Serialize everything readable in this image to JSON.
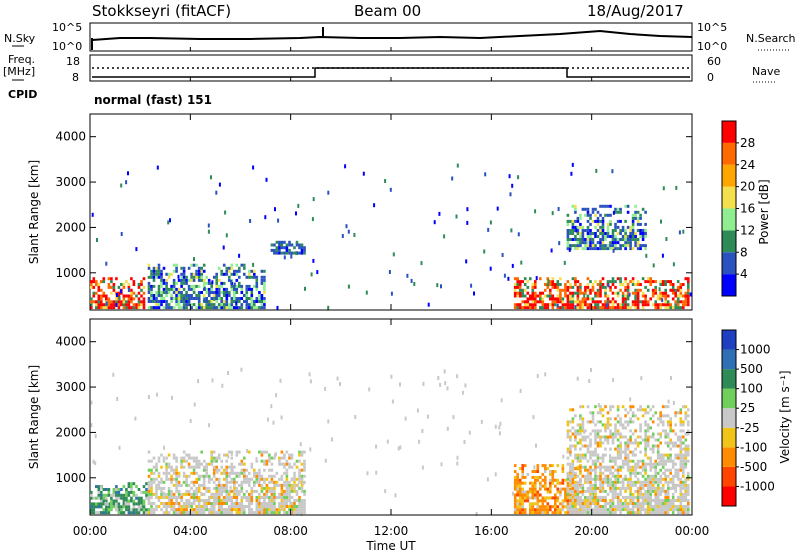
{
  "header": {
    "station": "Stokkseyri (fitACF)",
    "beam": "Beam 00",
    "date": "18/Aug/2017"
  },
  "status_panel": {
    "left_labels": {
      "nsky": "N.Sky",
      "freq": "Freq.",
      "freq_unit": "[MHz]",
      "cpid": "CPID"
    },
    "right_labels": {
      "nsearch": "N.Search",
      "nave": "Nave"
    },
    "nsky_ticks": [
      "10^5",
      "10^0"
    ],
    "nsearch_ticks": [
      "10^5",
      "10^0"
    ],
    "freq_ticks": [
      "18",
      "8"
    ],
    "nave_ticks": [
      "60",
      "0"
    ],
    "cpid_text": "normal (fast) 151"
  },
  "axes": {
    "x_ticks": [
      "00:00",
      "04:00",
      "08:00",
      "12:00",
      "16:00",
      "20:00",
      "00:00"
    ],
    "xlabel": "Time UT",
    "ylabel": "Slant Range [km]",
    "y_ticks": [
      "1000",
      "2000",
      "3000",
      "4000"
    ]
  },
  "colorbars": {
    "power": {
      "label": "Power [dB]",
      "ticks": [
        "4",
        "8",
        "12",
        "16",
        "20",
        "24",
        "28"
      ],
      "colors": [
        "#0000ff",
        "#2a52be",
        "#2e8b57",
        "#90ee90",
        "#f4e04d",
        "#ffa500",
        "#ff6a00",
        "#ff0000"
      ]
    },
    "velocity": {
      "label": "Velocity [m s⁻¹]",
      "ticks": [
        "1000",
        "500",
        "100",
        "25",
        "-25",
        "-100",
        "-500",
        "-1000"
      ],
      "colors": [
        "#1e3fbf",
        "#2f6fb3",
        "#2e8b57",
        "#6fcf5a",
        "#c8c8c8",
        "#f0c419",
        "#ff8c00",
        "#ff4500",
        "#ff0000"
      ]
    }
  },
  "chart_data": [
    {
      "type": "heatmap",
      "name_hint": "power",
      "xlabel": "Time UT",
      "ylabel": "Slant Range [km]",
      "xlim_hours": [
        0,
        24
      ],
      "ylim_km": [
        180,
        4500
      ],
      "blobs": [
        {
          "t0": 0.0,
          "t1": 2.2,
          "r0": 200,
          "r1": 900,
          "level": "high"
        },
        {
          "t0": 2.3,
          "t1": 7.0,
          "r0": 200,
          "r1": 1200,
          "level": "mid"
        },
        {
          "t0": 7.2,
          "t1": 8.6,
          "r0": 1400,
          "r1": 1700,
          "level": "low"
        },
        {
          "t0": 16.9,
          "t1": 23.9,
          "r0": 200,
          "r1": 900,
          "level": "high"
        },
        {
          "t0": 19.0,
          "t1": 22.2,
          "r0": 1500,
          "r1": 2500,
          "level": "mid"
        }
      ]
    },
    {
      "type": "heatmap",
      "name_hint": "velocity",
      "xlabel": "Time UT",
      "ylabel": "Slant Range [km]",
      "xlim_hours": [
        0,
        24
      ],
      "ylim_km": [
        180,
        4500
      ],
      "blobs": [
        {
          "t0": 0.0,
          "t1": 2.3,
          "r0": 200,
          "r1": 900,
          "level": "pos"
        },
        {
          "t0": 2.3,
          "t1": 8.6,
          "r0": 200,
          "r1": 1600,
          "level": "zero"
        },
        {
          "t0": 16.9,
          "t1": 19.6,
          "r0": 200,
          "r1": 1300,
          "level": "neg"
        },
        {
          "t0": 19.0,
          "t1": 23.9,
          "r0": 200,
          "r1": 2600,
          "level": "zero"
        }
      ]
    }
  ]
}
